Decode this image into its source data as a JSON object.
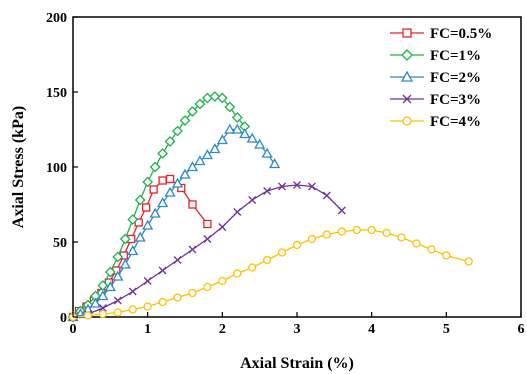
{
  "chart_data": {
    "type": "line",
    "xlabel": "Axial Strain (%)",
    "ylabel": "Axial Stress (kPa)",
    "xlim": [
      0,
      6
    ],
    "ylim": [
      0,
      200
    ],
    "xticks": [
      0,
      1,
      2,
      3,
      4,
      5,
      6
    ],
    "yticks": [
      0,
      50,
      100,
      150,
      200
    ],
    "x_tick_labels": [
      "0",
      "1",
      "2",
      "3",
      "4",
      "5",
      "6"
    ],
    "y_tick_labels": [
      "0",
      "50",
      "100",
      "150",
      "200"
    ],
    "grid": false,
    "legend_position": "top-right",
    "series": [
      {
        "name": "FC=0.5%",
        "color": "#e8202a",
        "marker": "square",
        "x": [
          0,
          0.08,
          0.18,
          0.28,
          0.38,
          0.48,
          0.58,
          0.68,
          0.78,
          0.88,
          0.98,
          1.08,
          1.2,
          1.3,
          1.45,
          1.6,
          1.8
        ],
        "y": [
          0,
          4,
          7,
          11,
          16,
          23,
          31,
          41,
          52,
          63,
          73,
          85,
          91,
          92,
          86,
          75,
          62
        ]
      },
      {
        "name": "FC=1%",
        "color": "#22b14c",
        "marker": "diamond",
        "x": [
          0,
          0.1,
          0.2,
          0.3,
          0.4,
          0.5,
          0.6,
          0.7,
          0.8,
          0.9,
          1.0,
          1.1,
          1.2,
          1.3,
          1.4,
          1.5,
          1.6,
          1.7,
          1.8,
          1.9,
          2.0,
          2.1,
          2.2,
          2.3
        ],
        "y": [
          0,
          4,
          8,
          14,
          21,
          30,
          40,
          52,
          65,
          78,
          90,
          100,
          109,
          117,
          124,
          131,
          137,
          142,
          146,
          147,
          146,
          140,
          133,
          127
        ]
      },
      {
        "name": "FC=2%",
        "color": "#2e8ac8",
        "marker": "triangle",
        "x": [
          0,
          0.1,
          0.2,
          0.3,
          0.4,
          0.5,
          0.6,
          0.7,
          0.8,
          0.9,
          1.0,
          1.1,
          1.2,
          1.3,
          1.4,
          1.5,
          1.6,
          1.7,
          1.8,
          1.9,
          2.0,
          2.1,
          2.2,
          2.3,
          2.4,
          2.5,
          2.6,
          2.7
        ],
        "y": [
          0,
          2,
          5,
          9,
          14,
          20,
          27,
          35,
          44,
          53,
          61,
          69,
          76,
          83,
          89,
          95,
          100,
          104,
          108,
          112,
          118,
          125,
          125,
          122,
          119,
          115,
          109,
          102
        ]
      },
      {
        "name": "FC=3%",
        "color": "#7030a0",
        "marker": "x",
        "x": [
          0,
          0.2,
          0.4,
          0.6,
          0.8,
          1.0,
          1.2,
          1.4,
          1.6,
          1.8,
          2.0,
          2.2,
          2.4,
          2.6,
          2.8,
          3.0,
          3.2,
          3.4,
          3.6
        ],
        "y": [
          0,
          2,
          6,
          11,
          17,
          24,
          31,
          38,
          45,
          52,
          60,
          70,
          78,
          84,
          87,
          88,
          87,
          81,
          71
        ]
      },
      {
        "name": "FC=4%",
        "color": "#ffc000",
        "marker": "circle",
        "x": [
          0,
          0.2,
          0.4,
          0.6,
          0.8,
          1.0,
          1.2,
          1.4,
          1.6,
          1.8,
          2.0,
          2.2,
          2.4,
          2.6,
          2.8,
          3.0,
          3.2,
          3.4,
          3.6,
          3.8,
          4.0,
          4.2,
          4.4,
          4.6,
          4.8,
          5.0,
          5.3
        ],
        "y": [
          0,
          1,
          2,
          3,
          5,
          7,
          10,
          13,
          16,
          20,
          24,
          29,
          33,
          38,
          43,
          48,
          52,
          55,
          57,
          58,
          58,
          56,
          53,
          49,
          45,
          41,
          37
        ]
      }
    ]
  }
}
